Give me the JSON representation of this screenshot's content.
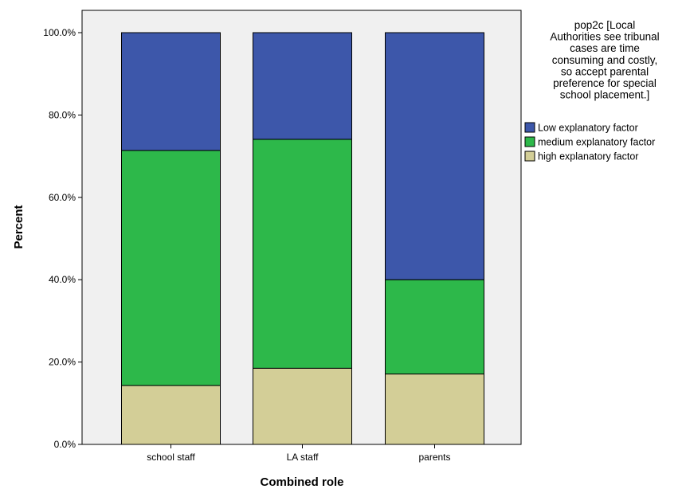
{
  "chart_data": {
    "type": "bar",
    "stacked": true,
    "categories": [
      "school staff",
      "LA staff",
      "parents"
    ],
    "series": [
      {
        "name": "high explanatory factor",
        "color": "#d3ce97",
        "values": [
          14.3,
          18.5,
          17.1
        ]
      },
      {
        "name": "medium explanatory factor",
        "color": "#2db84a",
        "values": [
          57.1,
          55.6,
          22.9
        ]
      },
      {
        "name": "Low explanatory factor",
        "color": "#3d57aa",
        "values": [
          28.6,
          25.9,
          60.0
        ]
      }
    ],
    "xlabel": "Combined role",
    "ylabel": "Percent",
    "ylim": [
      0,
      100
    ],
    "yticks": [
      "0.0%",
      "20.0%",
      "40.0%",
      "60.0%",
      "80.0%",
      "100.0%"
    ],
    "ytick_values": [
      0,
      20,
      40,
      60,
      80,
      100
    ],
    "legend": {
      "title_lines": [
        "pop2c [Local",
        "Authorities see tribunal",
        "cases are time",
        "consuming and costly,",
        "so accept parental",
        "preference for special",
        "school placement.]"
      ],
      "entries": [
        "Low explanatory factor",
        "medium explanatory factor",
        "high explanatory factor"
      ],
      "entry_colors": [
        "#3d57aa",
        "#2db84a",
        "#d3ce97"
      ],
      "placement": "right"
    },
    "plot_background": "#f0f0f0",
    "grid": false
  }
}
